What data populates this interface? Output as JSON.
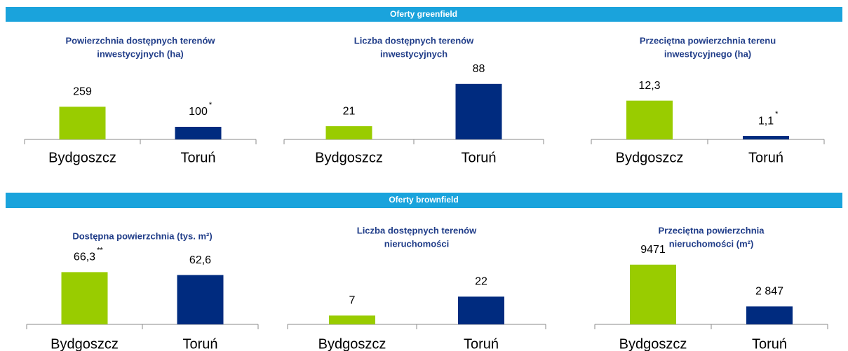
{
  "sections": [
    "Oferty greenfield",
    "Oferty  brownfield"
  ],
  "chart_data": [
    {
      "type": "bar",
      "title": [
        "Powierzchnia dostępnych terenów",
        "inwestycyjnych (ha)"
      ],
      "categories": [
        "Bydgoszcz",
        "Toruń"
      ],
      "values": [
        259,
        100
      ],
      "value_notes": [
        null,
        "*"
      ],
      "colors": [
        "#99cc00",
        "#002b7f"
      ],
      "ylim": [
        0,
        500
      ]
    },
    {
      "type": "bar",
      "title": [
        "Liczba dostępnych terenów",
        "inwestycyjnych"
      ],
      "categories": [
        "Bydgoszcz",
        "Toruń"
      ],
      "values": [
        21,
        88
      ],
      "colors": [
        "#99cc00",
        "#002b7f"
      ],
      "ylim": [
        0,
        100
      ]
    },
    {
      "type": "bar",
      "title": [
        "Przeciętna powierzchnia  terenu",
        "inwestycyjnego (ha)"
      ],
      "categories": [
        "Bydgoszcz",
        "Toruń"
      ],
      "values": [
        12.3,
        1.1
      ],
      "value_labels": [
        "12,3",
        "1,1"
      ],
      "value_notes": [
        null,
        "*"
      ],
      "colors": [
        "#99cc00",
        "#002b7f"
      ],
      "ylim": [
        0,
        20
      ]
    },
    {
      "type": "bar",
      "title": [
        "Dostępna  powierzchnia (tys. m²)"
      ],
      "categories": [
        "Bydgoszcz",
        "Toruń"
      ],
      "values": [
        66.3,
        62.6
      ],
      "value_labels": [
        "66,3",
        "62,6"
      ],
      "value_notes": [
        "**",
        null
      ],
      "colors": [
        "#99cc00",
        "#002b7f"
      ],
      "ylim": [
        0,
        80
      ]
    },
    {
      "type": "bar",
      "title": [
        "Liczba dostępnych terenów",
        "nieruchomości"
      ],
      "categories": [
        "Bydgoszcz",
        "Toruń"
      ],
      "values": [
        7,
        22
      ],
      "colors": [
        "#99cc00",
        "#002b7f"
      ],
      "ylim": [
        0,
        50
      ]
    },
    {
      "type": "bar",
      "title": [
        "Przeciętna powierzchnia",
        "nieruchomości (m²)"
      ],
      "categories": [
        "Bydgoszcz",
        "Toruń"
      ],
      "values": [
        9471,
        2847
      ],
      "value_labels": [
        "9471",
        "2 847"
      ],
      "colors": [
        "#99cc00",
        "#002b7f"
      ],
      "ylim": [
        0,
        10000
      ]
    }
  ]
}
